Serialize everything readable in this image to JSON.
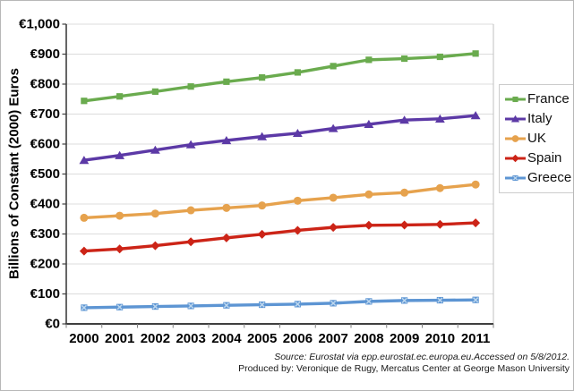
{
  "figure": {
    "y_axis_title": "Billions of Constant (2000) Euros",
    "source_line1": "Source: Eurostat via  epp.eurostat.ec.europa.eu.Accessed on 5/8/2012.",
    "source_line2": "Produced by: Veronique de Rugy, Mercatus Center at George Mason University"
  },
  "chart_data": {
    "type": "line",
    "title": "",
    "xlabel": "",
    "ylabel": "Billions of Constant (2000) Euros",
    "categories": [
      "2000",
      "2001",
      "2002",
      "2003",
      "2004",
      "2005",
      "2006",
      "2007",
      "2008",
      "2009",
      "2010",
      "2011"
    ],
    "ylim": [
      0,
      1000
    ],
    "yticks": [
      0,
      100,
      200,
      300,
      400,
      500,
      600,
      700,
      800,
      900,
      1000
    ],
    "ytick_labels": [
      "€0",
      "€100",
      "€200",
      "€300",
      "€400",
      "€500",
      "€600",
      "€700",
      "€800",
      "€900",
      "€1,000"
    ],
    "grid": true,
    "legend_position": "right",
    "colors": {
      "gridline": "#dcdcdc",
      "axis": "#3f3f3f",
      "plot_right_border": "#c0c0c0",
      "tick": "#7f7f7f"
    },
    "series": [
      {
        "name": "France",
        "color": "#6aab4e",
        "marker": "square",
        "marker_inner": "",
        "values": [
          744,
          759,
          775,
          792,
          808,
          822,
          839,
          860,
          881,
          885,
          891,
          902
        ]
      },
      {
        "name": "Italy",
        "color": "#5c39a6",
        "marker": "triangle",
        "marker_inner": "",
        "values": [
          546,
          562,
          580,
          598,
          612,
          625,
          636,
          652,
          666,
          680,
          684,
          695
        ]
      },
      {
        "name": "UK",
        "color": "#e6a24d",
        "marker": "circle",
        "marker_inner": "",
        "values": [
          354,
          361,
          368,
          379,
          387,
          395,
          411,
          421,
          432,
          438,
          453,
          465
        ]
      },
      {
        "name": "Spain",
        "color": "#cc2417",
        "marker": "diamond",
        "marker_inner": "",
        "values": [
          243,
          250,
          261,
          274,
          287,
          299,
          312,
          322,
          329,
          330,
          332,
          337
        ]
      },
      {
        "name": "Greece",
        "color": "#5d95d3",
        "marker": "x-square",
        "marker_inner": "#bdd7ee",
        "values": [
          54,
          56,
          58,
          60,
          62,
          64,
          66,
          69,
          75,
          78,
          79,
          80
        ]
      }
    ]
  }
}
